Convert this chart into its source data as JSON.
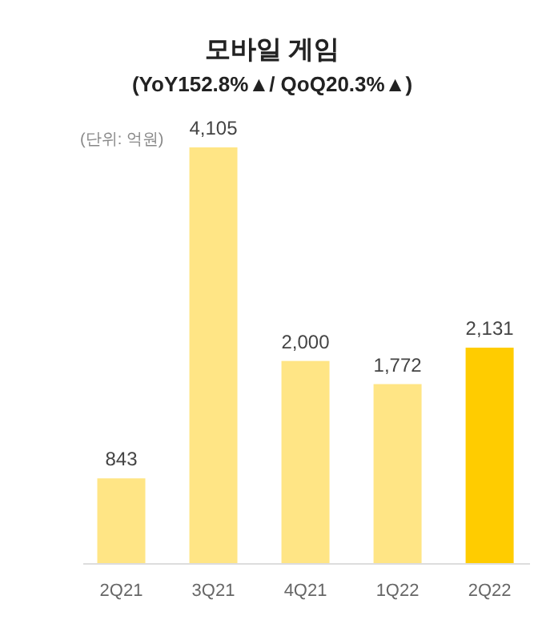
{
  "chart_data": {
    "type": "bar",
    "title": "모바일 게임",
    "subtitle": "(YoY152.8%▲/ QoQ20.3%▲)",
    "annotations": [
      "(단위: 억원)"
    ],
    "categories": [
      "2Q21",
      "3Q21",
      "4Q21",
      "1Q22",
      "2Q22"
    ],
    "values": [
      843,
      4105,
      2000,
      1772,
      2131
    ],
    "colors": [
      "#ffe585",
      "#ffe585",
      "#ffe585",
      "#ffe585",
      "#ffcc00"
    ],
    "value_labels": [
      "843",
      "4,105",
      "2,000",
      "1,772",
      "2,131"
    ]
  }
}
